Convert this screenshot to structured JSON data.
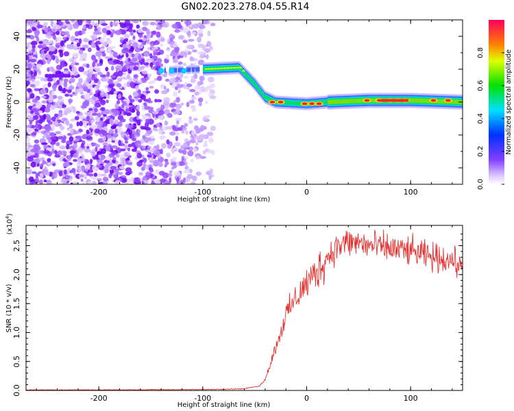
{
  "title": "GN02.2023.278.04.55.R14",
  "colors": {
    "snr_line": "#e53030",
    "axes": "#000000"
  },
  "chart_data": [
    {
      "type": "heatmap",
      "xlabel": "Height of straight line (km)",
      "ylabel": "Frequency (Hz)",
      "xlim": [
        -270,
        150
      ],
      "ylim": [
        -50,
        50
      ],
      "x_ticks": [
        -200,
        -100,
        0,
        100
      ],
      "y_ticks": [
        -40,
        -20,
        0,
        20,
        40
      ],
      "trace": [
        {
          "x": -140,
          "y": 19
        },
        {
          "x": -100,
          "y": 20
        },
        {
          "x": -65,
          "y": 21
        },
        {
          "x": -50,
          "y": 11
        },
        {
          "x": -40,
          "y": 3
        },
        {
          "x": -30,
          "y": 0
        },
        {
          "x": 0,
          "y": -1
        },
        {
          "x": 20,
          "y": 0
        },
        {
          "x": 60,
          "y": 1
        },
        {
          "x": 100,
          "y": 1
        },
        {
          "x": 150,
          "y": 0
        }
      ],
      "colorbar": {
        "label": "Normalized spectral amplitude",
        "range": [
          0,
          1
        ],
        "ticks": [
          "0.0",
          "0.2",
          "0.4",
          "0.6",
          "0.8"
        ]
      }
    },
    {
      "type": "line",
      "xlabel": "Height of straight line (km)",
      "ylabel": "SNR (10 * v/v)",
      "y_multiplier": "(x10",
      "y_multiplier_exp": "4",
      "y_multiplier_close": ")",
      "xlim": [
        -270,
        150
      ],
      "ylim": [
        0,
        2.85
      ],
      "x_ticks": [
        -200,
        -100,
        0,
        100
      ],
      "y_ticks": [
        "0.0",
        "0.5",
        "1.0",
        "1.5",
        "2.0",
        "2.5"
      ],
      "series": [
        {
          "x": [
            -270,
            -200,
            -100,
            -60,
            -45,
            -40,
            -35,
            -30,
            -25,
            -20,
            -10,
            0,
            10,
            20,
            30,
            40,
            50,
            60,
            80,
            100,
            120,
            140,
            150
          ],
          "y": [
            0.01,
            0.01,
            0.015,
            0.03,
            0.08,
            0.2,
            0.45,
            0.75,
            1.0,
            1.3,
            1.6,
            1.85,
            2.05,
            2.3,
            2.5,
            2.55,
            2.55,
            2.5,
            2.45,
            2.4,
            2.3,
            2.25,
            2.1
          ]
        }
      ]
    }
  ]
}
